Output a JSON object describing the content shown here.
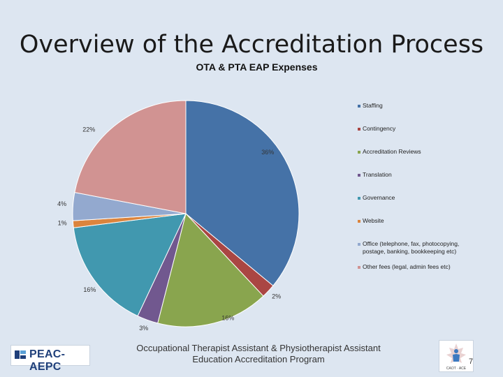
{
  "slide": {
    "title": "Overview of the Accreditation Process",
    "footer_line1": "Occupational Therapist Assistant & Physiotherapist Assistant",
    "footer_line2": "Education Accreditation Program",
    "logo_text": "PEAC-AEPC",
    "emblem_text": "CAOT · ACE",
    "page_number": "7"
  },
  "chart_data": {
    "type": "pie",
    "title": "OTA & PTA EAP Expenses",
    "slices": [
      {
        "name": "Staffing",
        "value": 36,
        "label": "36%",
        "color": "#4572a7"
      },
      {
        "name": "Contingency",
        "value": 2,
        "label": "2%",
        "color": "#aa4643"
      },
      {
        "name": "Accreditation Reviews",
        "value": 16,
        "label": "16%",
        "color": "#89a54e"
      },
      {
        "name": "Translation",
        "value": 3,
        "label": "3%",
        "color": "#71588f"
      },
      {
        "name": "Governance",
        "value": 16,
        "label": "16%",
        "color": "#4198af"
      },
      {
        "name": "Website",
        "value": 1,
        "label": "1%",
        "color": "#db843d"
      },
      {
        "name": "Office (telephone, fax, photocopying, postage, banking, bookkeeping etc)",
        "value": 4,
        "label": "4%",
        "color": "#93a9cf"
      },
      {
        "name": "Other fees (legal, admin fees etc)",
        "value": 22,
        "label": "22%",
        "color": "#d19392"
      }
    ],
    "legend_position": "right"
  }
}
